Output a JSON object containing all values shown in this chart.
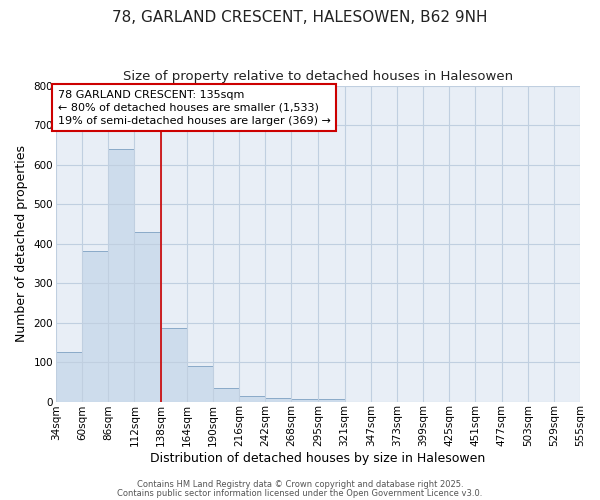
{
  "title": "78, GARLAND CRESCENT, HALESOWEN, B62 9NH",
  "subtitle": "Size of property relative to detached houses in Halesowen",
  "xlabel": "Distribution of detached houses by size in Halesowen",
  "ylabel": "Number of detached properties",
  "bar_color": "#cddcec",
  "bar_edge_color": "#8aaac8",
  "plot_bg_color": "#e8eef6",
  "fig_bg_color": "#ffffff",
  "grid_color": "#c0cfe0",
  "bin_labels": [
    "34sqm",
    "60sqm",
    "86sqm",
    "112sqm",
    "138sqm",
    "164sqm",
    "190sqm",
    "216sqm",
    "242sqm",
    "268sqm",
    "295sqm",
    "321sqm",
    "347sqm",
    "373sqm",
    "399sqm",
    "425sqm",
    "451sqm",
    "477sqm",
    "503sqm",
    "529sqm",
    "555sqm"
  ],
  "bar_values": [
    125,
    380,
    640,
    430,
    185,
    90,
    35,
    15,
    10,
    7,
    7,
    0,
    0,
    0,
    0,
    0,
    0,
    0,
    0,
    0
  ],
  "bin_edges": [
    34,
    60,
    86,
    112,
    138,
    164,
    190,
    216,
    242,
    268,
    295,
    321,
    347,
    373,
    399,
    425,
    451,
    477,
    503,
    529,
    555
  ],
  "red_line_x": 138,
  "ylim": [
    0,
    800
  ],
  "annotation_line1": "78 GARLAND CRESCENT: 135sqm",
  "annotation_line2": "← 80% of detached houses are smaller (1,533)",
  "annotation_line3": "19% of semi-detached houses are larger (369) →",
  "annotation_box_color": "#ffffff",
  "annotation_border_color": "#cc0000",
  "red_line_color": "#cc0000",
  "footer_text1": "Contains HM Land Registry data © Crown copyright and database right 2025.",
  "footer_text2": "Contains public sector information licensed under the Open Government Licence v3.0.",
  "title_fontsize": 11,
  "subtitle_fontsize": 9.5,
  "axis_label_fontsize": 9,
  "tick_fontsize": 7.5,
  "annotation_fontsize": 8,
  "footer_fontsize": 6
}
